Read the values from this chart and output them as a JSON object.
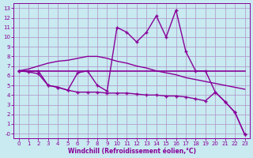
{
  "xlabel": "Windchill (Refroidissement éolien,°C)",
  "xlim": [
    -0.5,
    23.5
  ],
  "ylim": [
    -0.5,
    13.5
  ],
  "xticks": [
    0,
    1,
    2,
    3,
    4,
    5,
    6,
    7,
    8,
    9,
    10,
    11,
    12,
    13,
    14,
    15,
    16,
    17,
    18,
    19,
    20,
    21,
    22,
    23
  ],
  "yticks": [
    0,
    1,
    2,
    3,
    4,
    5,
    6,
    7,
    8,
    9,
    10,
    11,
    12,
    13
  ],
  "background_color": "#c8eaf0",
  "grid_color": "#b090c8",
  "line_color": "#880099",
  "line1_y": [
    6.5,
    6.5,
    6.5,
    6.5,
    6.5,
    6.5,
    6.5,
    6.5,
    6.5,
    6.5,
    6.5,
    6.5,
    6.5,
    6.5,
    6.5,
    6.5,
    6.5,
    6.5,
    6.5,
    6.5,
    6.5,
    6.5,
    6.5,
    6.5
  ],
  "line2_y": [
    6.5,
    6.7,
    7.0,
    7.3,
    7.5,
    7.6,
    7.8,
    8.0,
    8.0,
    7.8,
    7.5,
    7.3,
    7.0,
    6.8,
    6.5,
    6.3,
    6.1,
    5.8,
    5.6,
    5.4,
    5.2,
    5.0,
    4.8,
    4.6
  ],
  "line3_y": [
    6.5,
    6.5,
    6.5,
    5.0,
    4.8,
    4.5,
    6.3,
    6.5,
    5.0,
    4.4,
    11.0,
    10.5,
    9.5,
    10.5,
    12.2,
    10.0,
    12.8,
    8.5,
    6.5,
    6.5,
    4.3,
    3.3,
    2.2,
    -0.1
  ],
  "line4_y": [
    6.5,
    6.4,
    6.2,
    5.0,
    4.8,
    4.5,
    4.3,
    4.3,
    4.3,
    4.2,
    4.2,
    4.2,
    4.1,
    4.0,
    4.0,
    3.9,
    3.9,
    3.8,
    3.6,
    3.4,
    4.3,
    3.3,
    2.2,
    -0.1
  ]
}
